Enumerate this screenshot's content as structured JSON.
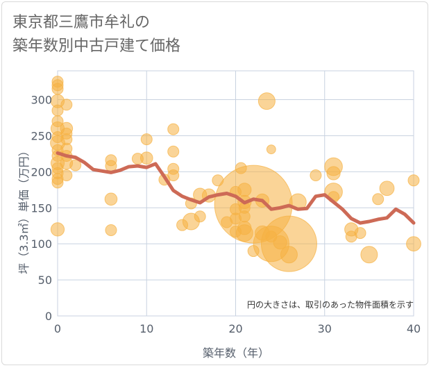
{
  "title_line1": "東京都三鷹市牟礼の",
  "title_line2": "築年数別中古戸建て価格",
  "chart_data": {
    "type": "scatter",
    "title": "東京都三鷹市牟礼の築年数別中古戸建て価格",
    "xlabel": "築年数（年）",
    "ylabel": "坪（3.3㎡）単価（万円）",
    "xlim": [
      0,
      40
    ],
    "ylim": [
      0,
      340
    ],
    "xticks": [
      0,
      10,
      20,
      30,
      40
    ],
    "yticks": [
      0,
      50,
      100,
      150,
      200,
      250,
      300
    ],
    "note": "円の大きさは、取引のあった物件面積を示す",
    "grid": true,
    "colors": {
      "bubble": "#f5b041",
      "line": "#cd6a56",
      "grid": "#c8d2e0"
    },
    "bubbles": [
      {
        "x": 0,
        "y": 325,
        "s": 1
      },
      {
        "x": 0,
        "y": 320,
        "s": 1
      },
      {
        "x": 0,
        "y": 315,
        "s": 1
      },
      {
        "x": 0,
        "y": 298,
        "s": 1.2
      },
      {
        "x": 0,
        "y": 285,
        "s": 1
      },
      {
        "x": 0,
        "y": 270,
        "s": 1
      },
      {
        "x": 0,
        "y": 260,
        "s": 1.2
      },
      {
        "x": 0,
        "y": 248,
        "s": 1
      },
      {
        "x": 0,
        "y": 240,
        "s": 1.3
      },
      {
        "x": 0,
        "y": 230,
        "s": 1
      },
      {
        "x": 0,
        "y": 222,
        "s": 1
      },
      {
        "x": 0,
        "y": 212,
        "s": 1.2
      },
      {
        "x": 0,
        "y": 205,
        "s": 1
      },
      {
        "x": 0,
        "y": 198,
        "s": 1
      },
      {
        "x": 0,
        "y": 190,
        "s": 1
      },
      {
        "x": 0,
        "y": 185,
        "s": 1
      },
      {
        "x": 0,
        "y": 120,
        "s": 1.2
      },
      {
        "x": 1,
        "y": 293,
        "s": 1
      },
      {
        "x": 1,
        "y": 260,
        "s": 1.1
      },
      {
        "x": 1,
        "y": 253,
        "s": 1
      },
      {
        "x": 1,
        "y": 245,
        "s": 1
      },
      {
        "x": 1,
        "y": 232,
        "s": 1
      },
      {
        "x": 1,
        "y": 222,
        "s": 1
      },
      {
        "x": 1,
        "y": 212,
        "s": 1.1
      },
      {
        "x": 1,
        "y": 195,
        "s": 1
      },
      {
        "x": 2,
        "y": 209,
        "s": 1
      },
      {
        "x": 6,
        "y": 216,
        "s": 1
      },
      {
        "x": 6,
        "y": 208,
        "s": 1
      },
      {
        "x": 6,
        "y": 162,
        "s": 1.1
      },
      {
        "x": 6,
        "y": 119,
        "s": 1
      },
      {
        "x": 9,
        "y": 218,
        "s": 1
      },
      {
        "x": 10,
        "y": 245,
        "s": 1
      },
      {
        "x": 10,
        "y": 219,
        "s": 1.1
      },
      {
        "x": 12,
        "y": 189,
        "s": 1
      },
      {
        "x": 13,
        "y": 259,
        "s": 1
      },
      {
        "x": 13,
        "y": 228,
        "s": 1
      },
      {
        "x": 13,
        "y": 204,
        "s": 1
      },
      {
        "x": 13,
        "y": 195,
        "s": 1
      },
      {
        "x": 14,
        "y": 126,
        "s": 1
      },
      {
        "x": 15,
        "y": 131,
        "s": 1.5
      },
      {
        "x": 15,
        "y": 156,
        "s": 1
      },
      {
        "x": 16,
        "y": 168,
        "s": 1.2
      },
      {
        "x": 16,
        "y": 138,
        "s": 1
      },
      {
        "x": 17,
        "y": 167,
        "s": 1.2
      },
      {
        "x": 18,
        "y": 188,
        "s": 1
      },
      {
        "x": 19,
        "y": 130,
        "s": 1
      },
      {
        "x": 20,
        "y": 172,
        "s": 1
      },
      {
        "x": 20,
        "y": 148,
        "s": 1
      },
      {
        "x": 20,
        "y": 135,
        "s": 1
      },
      {
        "x": 20,
        "y": 117,
        "s": 1
      },
      {
        "x": 20.6,
        "y": 205,
        "s": 1
      },
      {
        "x": 21,
        "y": 175,
        "s": 1.2
      },
      {
        "x": 21,
        "y": 158,
        "s": 1.2
      },
      {
        "x": 21,
        "y": 150,
        "s": 1
      },
      {
        "x": 21,
        "y": 138,
        "s": 1
      },
      {
        "x": 21,
        "y": 122,
        "s": 1.2
      },
      {
        "x": 21,
        "y": 115,
        "s": 1.5
      },
      {
        "x": 22,
        "y": 155,
        "s": 7
      },
      {
        "x": 22,
        "y": 90,
        "s": 1
      },
      {
        "x": 23,
        "y": 160,
        "s": 1.2
      },
      {
        "x": 23,
        "y": 115,
        "s": 1.3
      },
      {
        "x": 23.5,
        "y": 298,
        "s": 1.5
      },
      {
        "x": 24,
        "y": 231,
        "s": 0.8
      },
      {
        "x": 24,
        "y": 100,
        "s": 3.2
      },
      {
        "x": 24,
        "y": 110,
        "s": 1
      },
      {
        "x": 25,
        "y": 102,
        "s": 1.2
      },
      {
        "x": 26,
        "y": 100,
        "s": 5
      },
      {
        "x": 26,
        "y": 85,
        "s": 1.5
      },
      {
        "x": 27,
        "y": 158,
        "s": 1.5
      },
      {
        "x": 29,
        "y": 195,
        "s": 1
      },
      {
        "x": 31,
        "y": 207,
        "s": 1.6
      },
      {
        "x": 31,
        "y": 198,
        "s": 1.2
      },
      {
        "x": 31,
        "y": 172,
        "s": 1.6
      },
      {
        "x": 31,
        "y": 165,
        "s": 1
      },
      {
        "x": 33,
        "y": 120,
        "s": 1.2
      },
      {
        "x": 33,
        "y": 110,
        "s": 1
      },
      {
        "x": 34,
        "y": 115,
        "s": 1
      },
      {
        "x": 35,
        "y": 85,
        "s": 1.5
      },
      {
        "x": 36,
        "y": 162,
        "s": 1
      },
      {
        "x": 37,
        "y": 177,
        "s": 1.3
      },
      {
        "x": 40,
        "y": 188,
        "s": 1
      },
      {
        "x": 40,
        "y": 100,
        "s": 1.3
      }
    ],
    "trend": {
      "x": [
        0,
        1,
        2,
        3,
        4,
        5,
        6,
        7,
        8,
        9,
        10,
        11,
        12,
        13,
        14,
        15,
        16,
        17,
        18,
        19,
        20,
        21,
        22,
        23,
        24,
        25,
        26,
        27,
        28,
        29,
        30,
        31,
        32,
        33,
        34,
        35,
        36,
        37,
        38,
        39,
        40
      ],
      "y": [
        226,
        222,
        220,
        213,
        203,
        201,
        199,
        202,
        207,
        208,
        206,
        211,
        193,
        174,
        166,
        161,
        157,
        165,
        168,
        170,
        166,
        157,
        162,
        160,
        148,
        150,
        153,
        148,
        149,
        166,
        168,
        158,
        148,
        135,
        129,
        131,
        134,
        136,
        148,
        141,
        129
      ]
    }
  }
}
